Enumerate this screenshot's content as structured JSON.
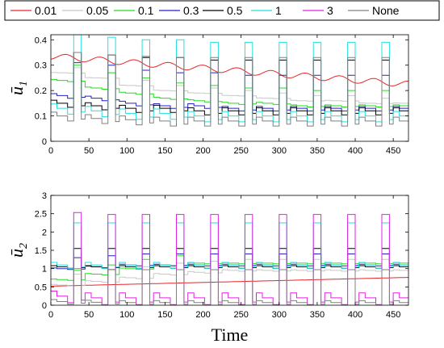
{
  "legend": {
    "entries": [
      {
        "label": "0.01",
        "color": "#e8262a"
      },
      {
        "label": "0.05",
        "color": "#c8c8c8"
      },
      {
        "label": "0.1",
        "color": "#22dd22"
      },
      {
        "label": "0.3",
        "color": "#2222c8"
      },
      {
        "label": "0.5",
        "color": "#000000"
      },
      {
        "label": "1",
        "color": "#22e0e0"
      },
      {
        "label": "3",
        "color": "#e022e0"
      },
      {
        "label": "None",
        "color": "#808080"
      }
    ]
  },
  "chart_data": [
    {
      "type": "line",
      "ylabel": "ū1",
      "ylabel_base": "ū",
      "ylabel_sub": "1",
      "xlabel": "",
      "xlim": [
        0,
        470
      ],
      "ylim": [
        0,
        0.42
      ],
      "xticks": [
        0,
        50,
        100,
        150,
        200,
        250,
        300,
        350,
        400,
        450
      ],
      "yticks": [
        0,
        0.1,
        0.2,
        0.3,
        0.4
      ],
      "ytick_labels": [
        "0",
        "0.1",
        "0.2",
        "0.3",
        "0.4"
      ],
      "period": 45,
      "series": [
        {
          "name": "0.01",
          "trend_start": 0.335,
          "trend_end": 0.225,
          "osc": 0.012
        },
        {
          "name": "0.05",
          "profile": [
            0.27,
            0.25,
            0.22,
            0.2,
            0.19,
            0.18,
            0.17,
            0.16,
            0.16,
            0.15
          ],
          "pulse": 0.02
        },
        {
          "name": "0.1",
          "profile": [
            0.24,
            0.21,
            0.19,
            0.17,
            0.16,
            0.15,
            0.15,
            0.14,
            0.14,
            0.14
          ],
          "pulse": 0.06
        },
        {
          "name": "0.3",
          "profile": [
            0.18,
            0.17,
            0.15,
            0.14,
            0.14,
            0.13,
            0.13,
            0.13,
            0.13,
            0.13
          ],
          "pulse": 0.13
        },
        {
          "name": "0.5",
          "profile": [
            0.15,
            0.14,
            0.13,
            0.13,
            0.12,
            0.12,
            0.12,
            0.12,
            0.12,
            0.12
          ],
          "pulse": 0.2
        },
        {
          "name": "1",
          "profile": [
            0.13,
            0.12,
            0.11,
            0.11,
            0.1,
            0.1,
            0.1,
            0.1,
            0.1,
            0.1
          ],
          "pulse": 0.29
        },
        {
          "name": "None",
          "profile": [
            0.1,
            0.09,
            0.085,
            0.08,
            0.08,
            0.08,
            0.08,
            0.08,
            0.08,
            0.08
          ],
          "pulse": 0.25
        }
      ]
    },
    {
      "type": "line",
      "ylabel": "ū2",
      "ylabel_base": "ū",
      "ylabel_sub": "2",
      "xlabel": "Time",
      "xlim": [
        0,
        470
      ],
      "ylim": [
        0,
        3
      ],
      "xticks": [
        0,
        50,
        100,
        150,
        200,
        250,
        300,
        350,
        400,
        450
      ],
      "yticks": [
        0,
        0.5,
        1,
        1.5,
        2,
        2.5,
        3
      ],
      "ytick_labels": [
        "0",
        "0.5",
        "1",
        "1.5",
        "2",
        "2.5",
        "3"
      ],
      "period": 45,
      "series": [
        {
          "name": "0.01",
          "trend_start": 0.52,
          "trend_end": 0.76,
          "osc": 0.0
        },
        {
          "name": "0.05",
          "profile": [
            0.55,
            0.65,
            0.75,
            0.85,
            0.9,
            0.95,
            0.95,
            0.95,
            0.95,
            0.95
          ],
          "pulse": 0.3
        },
        {
          "name": "0.1",
          "profile": [
            0.7,
            0.85,
            1.0,
            1.1,
            1.15,
            1.15,
            1.15,
            1.15,
            1.15,
            1.15
          ],
          "pulse": 0.25
        },
        {
          "name": "0.3",
          "profile": [
            1.0,
            1.05,
            1.1,
            1.1,
            1.1,
            1.1,
            1.1,
            1.1,
            1.1,
            1.1
          ],
          "pulse": 0.3
        },
        {
          "name": "0.5",
          "profile": [
            1.05,
            1.05,
            1.05,
            1.05,
            1.05,
            1.05,
            1.05,
            1.05,
            1.05,
            1.05
          ],
          "pulse": 0.5
        },
        {
          "name": "1",
          "profile": [
            1.1,
            1.1,
            1.1,
            1.1,
            1.1,
            1.1,
            1.1,
            1.1,
            1.1,
            1.1
          ],
          "pulse": 1.15
        },
        {
          "name": "3",
          "profile": [
            0.25,
            0.2,
            0.2,
            0.2,
            0.2,
            0.2,
            0.2,
            0.2,
            0.2,
            0.2
          ],
          "pulse": 2.28
        },
        {
          "name": "None",
          "profile": [
            0.1,
            0.08,
            0.07,
            0.07,
            0.07,
            0.07,
            0.07,
            0.07,
            0.07,
            0.07
          ],
          "pulse": 0.9
        }
      ]
    }
  ]
}
